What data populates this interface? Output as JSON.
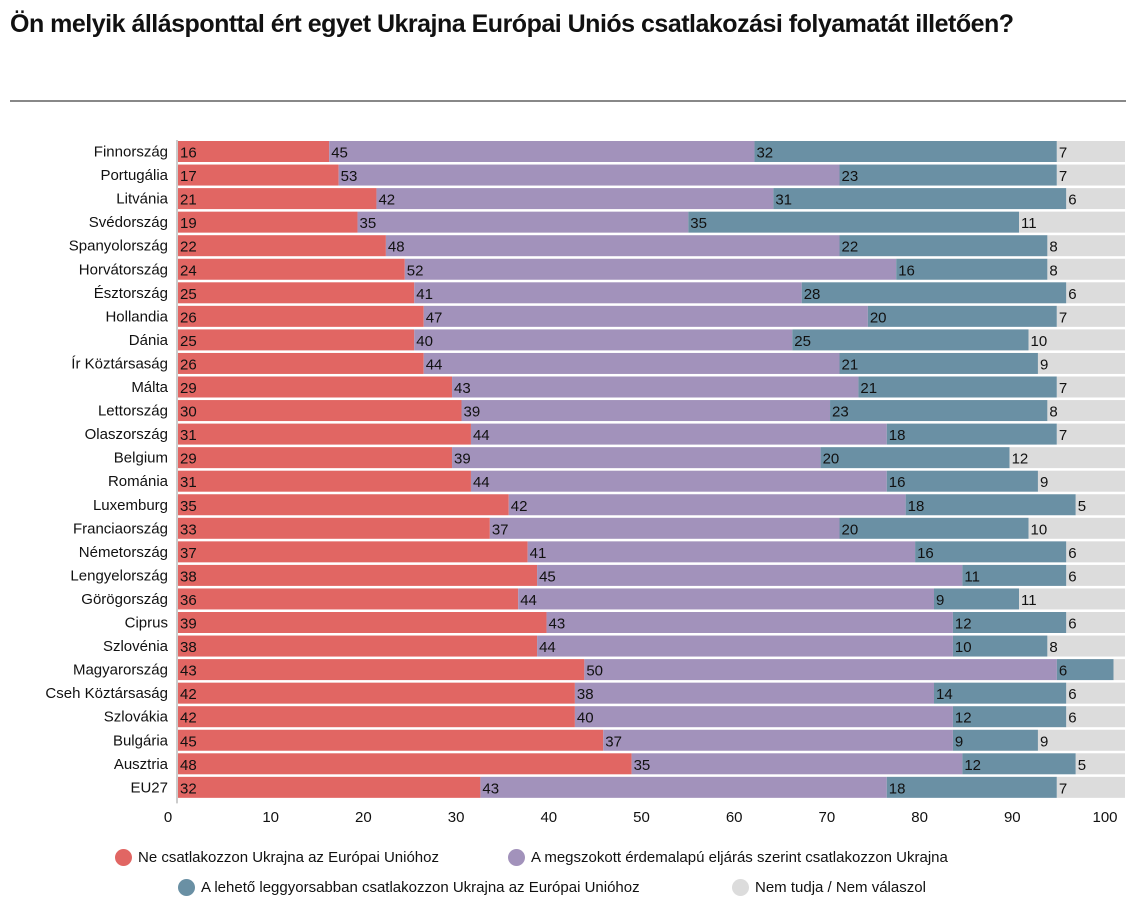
{
  "chart_data": {
    "type": "bar",
    "orientation": "horizontal",
    "stacked": true,
    "title": "Ön melyik állásponttal ért egyet Ukrajna Európai Uniós csatlakozási folyamatát illetően?",
    "xlim": [
      0,
      100
    ],
    "xticks": [
      "0",
      "10",
      "20",
      "30",
      "40",
      "50",
      "60",
      "70",
      "80",
      "90",
      "100"
    ],
    "grid": false,
    "legend_position": "bottom",
    "categories": [
      "Finnország",
      "Portugália",
      "Litvánia",
      "Svédország",
      "Spanyolország",
      "Horvátország",
      "Észtország",
      "Hollandia",
      "Dánia",
      "Ír Köztársaság",
      "Málta",
      "Lettország",
      "Olaszország",
      "Belgium",
      "Románia",
      "Luxemburg",
      "Franciaország",
      "Németország",
      "Lengyelország",
      "Görögország",
      "Ciprus",
      "Szlovénia",
      "Magyarország",
      "Cseh Köztársaság",
      "Szlovákia",
      "Bulgária",
      "Ausztria",
      "EU27"
    ],
    "series": [
      {
        "name": "Ne csatlakozzon Ukrajna az Európai Unióhoz",
        "color": "#e16663",
        "values": [
          16,
          17,
          21,
          19,
          22,
          24,
          25,
          26,
          25,
          26,
          29,
          30,
          31,
          29,
          31,
          35,
          33,
          37,
          38,
          36,
          39,
          38,
          43,
          42,
          42,
          45,
          48,
          32
        ]
      },
      {
        "name": "A megszokott érdemalapú eljárás szerint csatlakozzon Ukrajna",
        "color": "#a292bb",
        "values": [
          45,
          53,
          42,
          35,
          48,
          52,
          41,
          47,
          40,
          44,
          43,
          39,
          44,
          39,
          44,
          42,
          37,
          41,
          45,
          44,
          43,
          44,
          50,
          38,
          40,
          37,
          35,
          43
        ]
      },
      {
        "name": "A lehető leggyorsabban csatlakozzon Ukrajna az Európai Unióhoz",
        "color": "#6a90a4",
        "values": [
          32,
          23,
          31,
          35,
          22,
          16,
          28,
          20,
          25,
          21,
          21,
          23,
          18,
          20,
          16,
          18,
          20,
          16,
          11,
          9,
          12,
          10,
          6,
          14,
          12,
          9,
          12,
          18
        ]
      },
      {
        "name": "Nem tudja / Nem válaszol",
        "color": "#dcdcdc",
        "values": [
          7,
          7,
          6,
          11,
          8,
          8,
          6,
          7,
          10,
          9,
          7,
          8,
          7,
          12,
          9,
          5,
          10,
          6,
          6,
          11,
          6,
          8,
          null,
          6,
          6,
          9,
          5,
          7
        ]
      }
    ]
  }
}
